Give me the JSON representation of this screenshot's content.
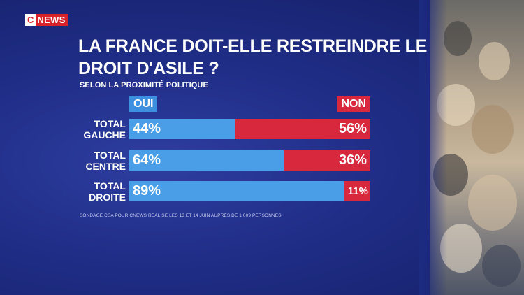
{
  "brand": {
    "logo_c": "C",
    "logo_text": "NEWS"
  },
  "title": "LA FRANCE DOIT-ELLE RESTREINDRE LE DROIT D'ASILE ?",
  "subtitle": "SELON LA PROXIMITÉ POLITIQUE",
  "source": "SONDAGE CSA POUR CNEWS RÉALISÉ LES 13 ET 14 JUIN AUPRÈS DE 1 009 PERSONNES",
  "colors": {
    "oui": "#4a9ee8",
    "non": "#d8283e",
    "background": "#1f2d86"
  },
  "chart_data": {
    "type": "bar",
    "orientation": "horizontal",
    "stacked": true,
    "title": "LA FRANCE DOIT-ELLE RESTREINDRE LE DROIT D'ASILE ?",
    "subtitle": "SELON LA PROXIMITÉ POLITIQUE",
    "legend_placement": "top",
    "categories": [
      "TOTAL GAUCHE",
      "TOTAL CENTRE",
      "TOTAL DROITE"
    ],
    "series": [
      {
        "name": "OUI",
        "values": [
          44,
          64,
          89
        ],
        "labels": [
          "44%",
          "64%",
          "89%"
        ]
      },
      {
        "name": "NON",
        "values": [
          56,
          36,
          11
        ],
        "labels": [
          "56%",
          "36%",
          "11%"
        ]
      }
    ],
    "xlim": [
      0,
      100
    ]
  }
}
